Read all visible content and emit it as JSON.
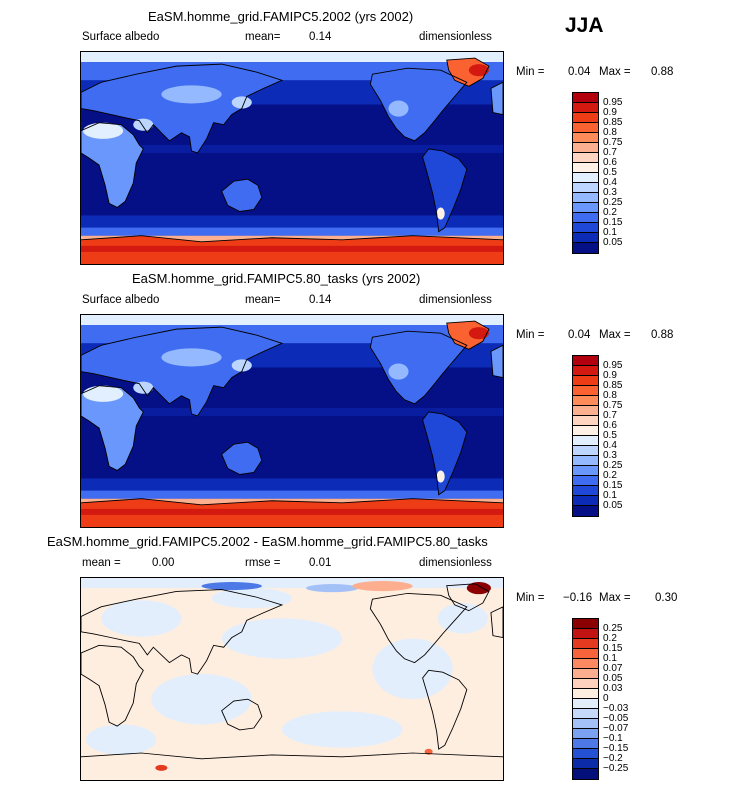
{
  "season": "JJA",
  "panels": [
    {
      "title": "EaSM.homme_grid.FAMIPC5.2002 (yrs 2002)",
      "left_label": "Surface albedo",
      "stat_label": "mean=",
      "stat_value": "0.14",
      "extra_label": "",
      "extra_value": "",
      "units": "dimensionless",
      "min_label": "Min =",
      "min_value": "0.04",
      "max_label": "Max =",
      "max_value": "0.88",
      "levels": [
        "0.95",
        "0.9",
        "0.85",
        "0.8",
        "0.75",
        "0.7",
        "0.6",
        "0.5",
        "0.4",
        "0.3",
        "0.25",
        "0.2",
        "0.15",
        "0.1",
        "0.05"
      ],
      "colors": [
        "#b3000f",
        "#d41a10",
        "#ee3d16",
        "#fb6232",
        "#fd8c5a",
        "#fcb08f",
        "#fdd5c0",
        "#fff1e6",
        "#e2efff",
        "#bcd6ff",
        "#94b9ff",
        "#6a97fb",
        "#3f6cf0",
        "#1f48d9",
        "#0c2cb8",
        "#050f86"
      ]
    },
    {
      "title": "EaSM.homme_grid.FAMIPC5.80_tasks (yrs 2002)",
      "left_label": "Surface albedo",
      "stat_label": "mean=",
      "stat_value": "0.14",
      "extra_label": "",
      "extra_value": "",
      "units": "dimensionless",
      "min_label": "Min =",
      "min_value": "0.04",
      "max_label": "Max =",
      "max_value": "0.88",
      "levels": [
        "0.95",
        "0.9",
        "0.85",
        "0.8",
        "0.75",
        "0.7",
        "0.6",
        "0.5",
        "0.4",
        "0.3",
        "0.25",
        "0.2",
        "0.15",
        "0.1",
        "0.05"
      ],
      "colors": [
        "#b3000f",
        "#d41a10",
        "#ee3d16",
        "#fb6232",
        "#fd8c5a",
        "#fcb08f",
        "#fdd5c0",
        "#fff1e6",
        "#e2efff",
        "#bcd6ff",
        "#94b9ff",
        "#6a97fb",
        "#3f6cf0",
        "#1f48d9",
        "#0c2cb8",
        "#050f86"
      ]
    },
    {
      "title": "EaSM.homme_grid.FAMIPC5.2002 - EaSM.homme_grid.FAMIPC5.80_tasks",
      "left_label": "mean =",
      "stat_label": "",
      "stat_value": "0.00",
      "extra_label": "rmse =",
      "extra_value": "0.01",
      "units": "dimensionless",
      "min_label": "Min =",
      "min_value": "−0.16",
      "max_label": "Max =",
      "max_value": "0.30",
      "levels": [
        "0.25",
        "0.2",
        "0.15",
        "0.1",
        "0.07",
        "0.05",
        "0.03",
        "0",
        "−0.03",
        "−0.05",
        "−0.07",
        "−0.1",
        "−0.15",
        "−0.2",
        "−0.25"
      ],
      "colors": [
        "#8b0000",
        "#c21313",
        "#e43a1f",
        "#f7643c",
        "#fb8a63",
        "#fcae8f",
        "#fdd1bd",
        "#feeee0",
        "#e3eefd",
        "#c5dafb",
        "#a3c1f7",
        "#7aa2f0",
        "#4d79e6",
        "#2450d4",
        "#0c2ba8",
        "#04107a"
      ]
    }
  ]
}
